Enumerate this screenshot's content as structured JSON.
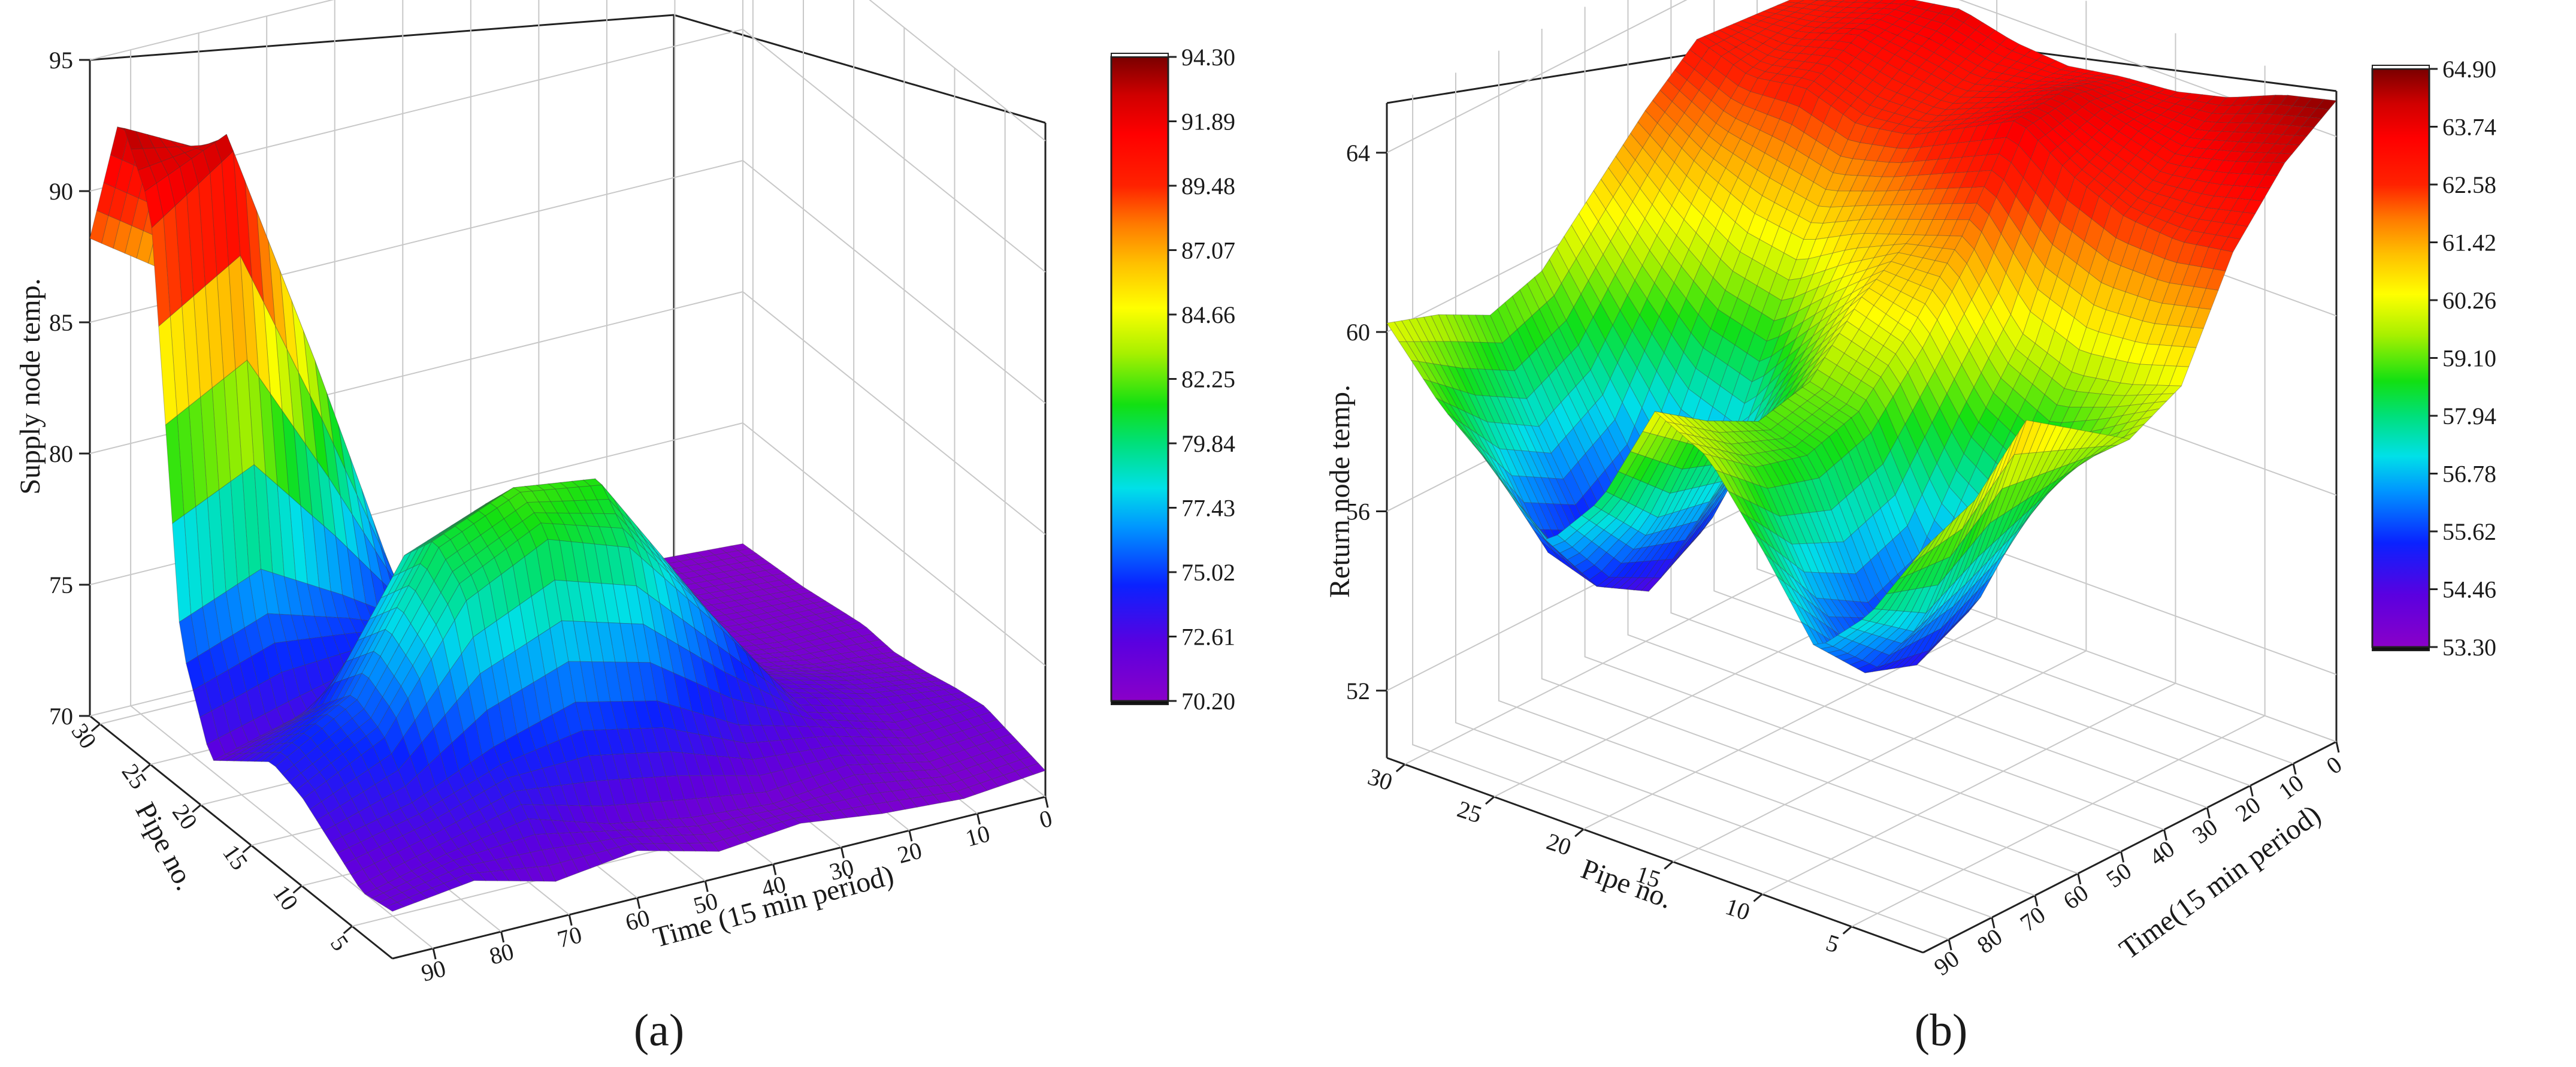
{
  "chart_data": [
    {
      "panel_label": "(a)",
      "type": "surface3d",
      "zlabel": "Supply node temp.",
      "ylabel": "Pipe no.",
      "xlabel": "Time (15 min period)",
      "z_ticks": [
        "70",
        "75",
        "80",
        "85",
        "90",
        "95"
      ],
      "zlim": [
        70,
        95
      ],
      "pipe_ticks": [
        "5",
        "10",
        "15",
        "20",
        "25",
        "30"
      ],
      "pipe_range": [
        1,
        31
      ],
      "time_ticks": [
        "0",
        "10",
        "20",
        "30",
        "40",
        "50",
        "60",
        "70",
        "80",
        "90"
      ],
      "time_range": [
        0,
        96
      ],
      "colorbar": {
        "min": 70.2,
        "max": 94.3,
        "labels": [
          "94.30",
          "91.89",
          "89.48",
          "87.07",
          "84.66",
          "82.25",
          "79.84",
          "77.43",
          "75.02",
          "72.61",
          "70.20"
        ]
      },
      "surface_profile": {
        "pipe_samples": [
          1,
          4,
          7,
          10,
          13,
          16,
          19,
          22,
          25,
          28,
          31
        ],
        "time_samples": [
          0,
          12,
          24,
          36,
          48,
          60,
          72,
          84,
          96
        ],
        "values": [
          [
            71.0,
            70.7,
            70.9,
            71.3,
            71.0,
            71.8,
            71.4,
            72.2,
            71.8
          ],
          [
            71.3,
            71.0,
            71.6,
            71.2,
            71.5,
            72.0,
            73.1,
            72.4,
            71.6
          ],
          [
            71.6,
            71.4,
            72.3,
            73.0,
            74.6,
            75.3,
            74.4,
            73.2,
            72.5
          ],
          [
            71.4,
            71.8,
            72.6,
            76.5,
            80.1,
            81.2,
            79.6,
            75.0,
            73.4
          ],
          [
            71.1,
            71.6,
            72.4,
            77.0,
            81.6,
            82.0,
            80.7,
            75.6,
            73.8
          ],
          [
            70.9,
            71.2,
            71.8,
            75.4,
            79.6,
            80.4,
            79.2,
            74.3,
            72.9
          ],
          [
            71.0,
            71.0,
            71.4,
            72.6,
            74.0,
            74.6,
            73.9,
            72.8,
            72.0
          ],
          [
            70.8,
            70.9,
            71.1,
            71.6,
            72.5,
            73.8,
            75.4,
            76.8,
            75.6
          ],
          [
            70.6,
            70.8,
            71.0,
            71.4,
            72.2,
            74.6,
            84.3,
            93.4,
            91.2
          ],
          [
            70.5,
            70.7,
            70.9,
            71.2,
            72.0,
            74.1,
            83.0,
            91.6,
            93.8
          ],
          [
            70.4,
            70.6,
            70.8,
            71.0,
            71.6,
            72.8,
            78.5,
            86.1,
            88.2
          ]
        ]
      }
    },
    {
      "panel_label": "(b)",
      "type": "surface3d",
      "zlabel": "Return node temp.",
      "ylabel": "Pipe no.",
      "xlabel": "Time(15 min period)",
      "z_ticks": [
        "52",
        "56",
        "60",
        "64"
      ],
      "zlim": [
        50.5,
        65
      ],
      "pipe_ticks": [
        "5",
        "10",
        "15",
        "20",
        "25",
        "30"
      ],
      "pipe_range": [
        1,
        31
      ],
      "time_ticks": [
        "0",
        "10",
        "20",
        "30",
        "40",
        "50",
        "60",
        "70",
        "80",
        "90"
      ],
      "time_range": [
        0,
        96
      ],
      "colorbar": {
        "min": 53.3,
        "max": 64.9,
        "labels": [
          "64.90",
          "63.74",
          "62.58",
          "61.42",
          "60.26",
          "59.10",
          "57.94",
          "56.78",
          "55.62",
          "54.46",
          "53.30"
        ]
      },
      "surface_profile": {
        "pipe_samples": [
          1,
          4,
          7,
          10,
          13,
          16,
          19,
          22,
          25,
          28,
          31
        ],
        "time_samples": [
          0,
          12,
          24,
          36,
          48,
          60,
          72,
          84,
          96
        ],
        "values": [
          [
            64.8,
            64.0,
            62.6,
            60.2,
            59.6,
            60.4,
            61.2,
            60.0,
            59.5
          ],
          [
            64.5,
            63.6,
            62.4,
            59.8,
            58.6,
            58.0,
            57.4,
            56.8,
            57.6
          ],
          [
            64.0,
            63.3,
            62.5,
            59.6,
            57.6,
            55.4,
            54.8,
            55.2,
            56.4
          ],
          [
            63.7,
            63.6,
            63.0,
            60.1,
            58.4,
            56.4,
            55.9,
            56.6,
            58.2
          ],
          [
            63.6,
            63.9,
            63.8,
            61.8,
            60.2,
            59.0,
            58.6,
            58.9,
            59.8
          ],
          [
            63.4,
            63.4,
            63.2,
            61.4,
            60.6,
            59.3,
            59.0,
            59.6,
            60.4
          ],
          [
            63.5,
            63.0,
            62.6,
            61.0,
            59.2,
            57.6,
            56.6,
            56.8,
            58.0
          ],
          [
            63.8,
            63.2,
            62.4,
            60.4,
            57.8,
            55.0,
            54.3,
            55.0,
            56.6
          ],
          [
            63.6,
            63.4,
            62.8,
            60.6,
            58.2,
            55.6,
            54.8,
            55.4,
            57.8
          ],
          [
            63.2,
            63.0,
            62.6,
            61.2,
            59.4,
            57.6,
            56.9,
            57.6,
            58.8
          ],
          [
            62.8,
            62.9,
            63.0,
            62.0,
            60.8,
            59.6,
            59.2,
            59.8,
            60.2
          ]
        ]
      }
    }
  ]
}
